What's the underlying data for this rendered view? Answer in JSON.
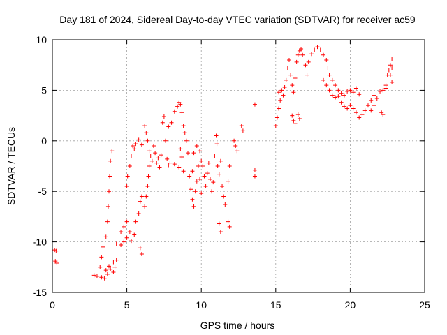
{
  "chart_data": {
    "type": "scatter",
    "title": "Day 181 of 2024, Sidereal Day-to-day VTEC variation (SDTVAR) for receiver ac59",
    "xlabel": "GPS time / hours",
    "ylabel": "SDTVAR / TECUs",
    "xlim": [
      0,
      25
    ],
    "ylim": [
      -15,
      10
    ],
    "xticks": [
      0,
      5,
      10,
      15,
      20,
      25
    ],
    "yticks": [
      -15,
      -10,
      -5,
      0,
      5,
      10
    ],
    "grid": true,
    "marker": "plus",
    "color": "#ff0000",
    "series": [
      {
        "name": "SDTVAR",
        "points": [
          [
            0.15,
            -10.8
          ],
          [
            0.25,
            -10.9
          ],
          [
            0.2,
            -11.9
          ],
          [
            0.3,
            -12.1
          ],
          [
            2.8,
            -13.3
          ],
          [
            3.0,
            -13.4
          ],
          [
            3.2,
            -12.5
          ],
          [
            3.3,
            -11.5
          ],
          [
            3.4,
            -10.5
          ],
          [
            3.3,
            -13.5
          ],
          [
            3.5,
            -13.6
          ],
          [
            3.7,
            -13.2
          ],
          [
            3.6,
            -12.8
          ],
          [
            3.8,
            -12.4
          ],
          [
            3.9,
            -12.7
          ],
          [
            4.1,
            -13.0
          ],
          [
            4.2,
            -12.5
          ],
          [
            4.1,
            -12.0
          ],
          [
            4.3,
            -11.8
          ],
          [
            3.6,
            -9.5
          ],
          [
            3.7,
            -8.0
          ],
          [
            3.75,
            -6.5
          ],
          [
            3.8,
            -5.0
          ],
          [
            3.85,
            -3.5
          ],
          [
            3.9,
            -2.0
          ],
          [
            4.0,
            -1.0
          ],
          [
            4.3,
            -10.2
          ],
          [
            4.6,
            -10.3
          ],
          [
            4.8,
            -10.0
          ],
          [
            5.0,
            -9.6
          ],
          [
            4.6,
            -9.0
          ],
          [
            4.8,
            -8.5
          ],
          [
            5.0,
            -8.0
          ],
          [
            5.2,
            -9.0
          ],
          [
            5.3,
            -9.9
          ],
          [
            5.5,
            -9.3
          ],
          [
            5.6,
            -8.0
          ],
          [
            5.8,
            -7.2
          ],
          [
            5.9,
            -6.0
          ],
          [
            6.0,
            -5.5
          ],
          [
            5.9,
            -10.6
          ],
          [
            6.0,
            -11.2
          ],
          [
            5.0,
            -4.5
          ],
          [
            5.05,
            -3.5
          ],
          [
            5.2,
            -2.5
          ],
          [
            5.3,
            -1.5
          ],
          [
            5.4,
            -0.5
          ],
          [
            5.5,
            -0.8
          ],
          [
            5.6,
            -0.3
          ],
          [
            5.8,
            0.1
          ],
          [
            6.0,
            -0.4
          ],
          [
            6.2,
            -6.5
          ],
          [
            6.3,
            -5.5
          ],
          [
            6.4,
            -4.5
          ],
          [
            6.45,
            -3.5
          ],
          [
            6.5,
            -2.5
          ],
          [
            6.2,
            1.5
          ],
          [
            6.3,
            0.8
          ],
          [
            6.4,
            0.0
          ],
          [
            6.5,
            -1.0
          ],
          [
            6.6,
            -1.5
          ],
          [
            6.7,
            -2.0
          ],
          [
            6.8,
            -0.5
          ],
          [
            6.9,
            -1.2
          ],
          [
            7.0,
            -2.2
          ],
          [
            7.1,
            -1.7
          ],
          [
            7.2,
            -2.6
          ],
          [
            7.3,
            -1.4
          ],
          [
            7.4,
            1.8
          ],
          [
            7.5,
            2.4
          ],
          [
            7.6,
            0.0
          ],
          [
            7.7,
            -1.8
          ],
          [
            7.8,
            -2.4
          ],
          [
            7.9,
            -2.2
          ],
          [
            7.8,
            1.4
          ],
          [
            8.0,
            1.8
          ],
          [
            8.2,
            2.9
          ],
          [
            8.4,
            3.4
          ],
          [
            8.5,
            3.8
          ],
          [
            8.6,
            3.6
          ],
          [
            8.7,
            2.8
          ],
          [
            8.8,
            1.5
          ],
          [
            8.9,
            0.8
          ],
          [
            8.2,
            -2.3
          ],
          [
            8.5,
            -2.6
          ],
          [
            8.8,
            -3.0
          ],
          [
            8.6,
            -0.8
          ],
          [
            8.7,
            -1.6
          ],
          [
            9.0,
            0.0
          ],
          [
            9.1,
            -1.2
          ],
          [
            9.2,
            -3.5
          ],
          [
            9.3,
            -4.8
          ],
          [
            9.4,
            -5.8
          ],
          [
            9.5,
            -6.5
          ],
          [
            9.6,
            -5.0
          ],
          [
            9.7,
            -4.0
          ],
          [
            9.8,
            -2.5
          ],
          [
            9.9,
            -3.8
          ],
          [
            10.0,
            -5.2
          ],
          [
            9.4,
            -3.0
          ],
          [
            9.5,
            -1.2
          ],
          [
            9.7,
            -0.5
          ],
          [
            9.9,
            -1.0
          ],
          [
            10.0,
            -2.0
          ],
          [
            10.1,
            -2.5
          ],
          [
            10.2,
            -3.5
          ],
          [
            10.3,
            -4.5
          ],
          [
            10.4,
            -3.2
          ],
          [
            10.5,
            -2.2
          ],
          [
            10.6,
            -3.8
          ],
          [
            10.7,
            -5.0
          ],
          [
            10.8,
            -4.1
          ],
          [
            10.9,
            -1.5
          ],
          [
            11.0,
            0.5
          ],
          [
            11.05,
            -0.3
          ],
          [
            11.1,
            -2.5
          ],
          [
            11.2,
            -3.3
          ],
          [
            11.3,
            -2.0
          ],
          [
            11.4,
            -4.5
          ],
          [
            11.5,
            -5.5
          ],
          [
            11.6,
            -6.3
          ],
          [
            11.2,
            -8.2
          ],
          [
            11.3,
            -9.0
          ],
          [
            11.8,
            -8.0
          ],
          [
            11.9,
            -8.5
          ],
          [
            11.8,
            -4.0
          ],
          [
            11.9,
            -2.5
          ],
          [
            12.2,
            0.0
          ],
          [
            12.3,
            -0.5
          ],
          [
            12.4,
            -1.0
          ],
          [
            12.7,
            1.5
          ],
          [
            12.8,
            1.0
          ],
          [
            13.6,
            3.6
          ],
          [
            13.6,
            -2.9
          ],
          [
            13.6,
            -3.5
          ],
          [
            15.0,
            1.5
          ],
          [
            15.1,
            2.3
          ],
          [
            15.2,
            3.2
          ],
          [
            15.3,
            4.0
          ],
          [
            15.4,
            5.0
          ],
          [
            15.2,
            4.8
          ],
          [
            15.5,
            4.5
          ],
          [
            15.6,
            5.3
          ],
          [
            15.7,
            6.0
          ],
          [
            15.8,
            7.2
          ],
          [
            15.9,
            8.0
          ],
          [
            16.0,
            6.5
          ],
          [
            16.1,
            5.5
          ],
          [
            16.2,
            4.8
          ],
          [
            16.3,
            6.2
          ],
          [
            16.4,
            7.8
          ],
          [
            16.5,
            8.5
          ],
          [
            16.1,
            2.5
          ],
          [
            16.2,
            2.0
          ],
          [
            16.3,
            1.7
          ],
          [
            16.5,
            2.6
          ],
          [
            16.6,
            2.2
          ],
          [
            16.6,
            8.9
          ],
          [
            16.7,
            9.1
          ],
          [
            16.8,
            8.5
          ],
          [
            17.0,
            7.5
          ],
          [
            17.1,
            6.5
          ],
          [
            17.2,
            7.8
          ],
          [
            17.4,
            8.6
          ],
          [
            17.6,
            9.0
          ],
          [
            17.8,
            9.3
          ],
          [
            18.0,
            9.0
          ],
          [
            18.2,
            8.5
          ],
          [
            18.4,
            8.0
          ],
          [
            18.5,
            7.2
          ],
          [
            18.6,
            6.5
          ],
          [
            18.8,
            6.0
          ],
          [
            19.0,
            5.5
          ],
          [
            19.2,
            5.0
          ],
          [
            19.4,
            4.7
          ],
          [
            19.6,
            4.5
          ],
          [
            19.8,
            4.9
          ],
          [
            20.0,
            5.0
          ],
          [
            20.2,
            4.8
          ],
          [
            20.4,
            5.2
          ],
          [
            20.6,
            4.6
          ],
          [
            18.2,
            6.0
          ],
          [
            18.4,
            5.5
          ],
          [
            18.6,
            5.0
          ],
          [
            18.8,
            4.5
          ],
          [
            19.0,
            4.3
          ],
          [
            19.2,
            4.4
          ],
          [
            19.4,
            3.8
          ],
          [
            19.6,
            3.4
          ],
          [
            19.8,
            3.2
          ],
          [
            20.0,
            3.5
          ],
          [
            20.2,
            3.2
          ],
          [
            20.4,
            2.8
          ],
          [
            20.6,
            2.3
          ],
          [
            20.8,
            2.6
          ],
          [
            21.0,
            3.0
          ],
          [
            21.2,
            3.5
          ],
          [
            21.4,
            4.0
          ],
          [
            21.6,
            4.5
          ],
          [
            21.4,
            3.0
          ],
          [
            21.6,
            3.5
          ],
          [
            21.8,
            4.2
          ],
          [
            22.0,
            4.9
          ],
          [
            22.2,
            5.0
          ],
          [
            22.4,
            5.2
          ],
          [
            22.1,
            2.8
          ],
          [
            22.2,
            2.6
          ],
          [
            22.4,
            5.5
          ],
          [
            22.5,
            6.5
          ],
          [
            22.6,
            7.0
          ],
          [
            22.7,
            7.5
          ],
          [
            22.8,
            8.1
          ],
          [
            22.7,
            6.5
          ],
          [
            22.8,
            5.8
          ],
          [
            22.8,
            7.2
          ]
        ]
      }
    ]
  }
}
